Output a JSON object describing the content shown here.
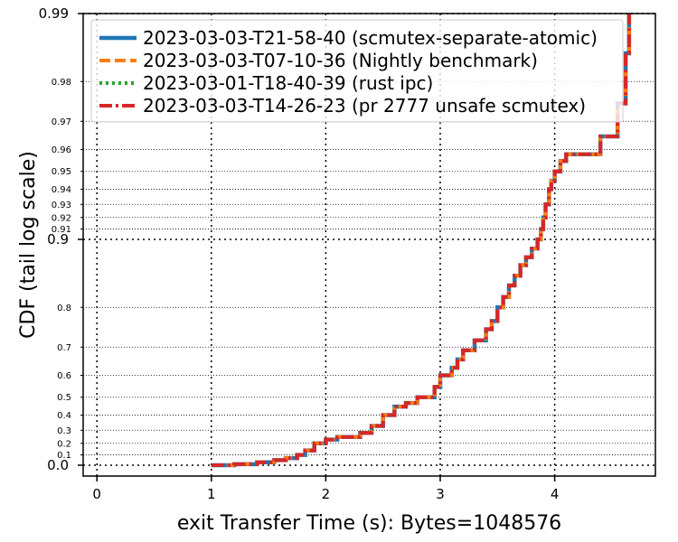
{
  "chart_data": {
    "type": "line",
    "xlabel": "exit Transfer Time (s): Bytes=1048576",
    "ylabel": "CDF (tail log scale)",
    "y_scale": "tail-log",
    "grid": true,
    "legend_placement": "top-left",
    "xlim": [
      -0.12,
      4.88
    ],
    "x_ticks": [
      {
        "value": 0,
        "label": "0"
      },
      {
        "value": 1,
        "label": "1"
      },
      {
        "value": 2,
        "label": "2"
      },
      {
        "value": 3,
        "label": "3"
      },
      {
        "value": 4,
        "label": "4"
      }
    ],
    "y_ticks_major": [
      {
        "value": 0.0,
        "label": "0.0"
      },
      {
        "value": 0.9,
        "label": "0.9"
      },
      {
        "value": 0.99,
        "label": "0.99"
      }
    ],
    "y_ticks_minor": [
      {
        "value": 0.1,
        "label": "0.1"
      },
      {
        "value": 0.2,
        "label": "0.2"
      },
      {
        "value": 0.3,
        "label": "0.3"
      },
      {
        "value": 0.4,
        "label": "0.4"
      },
      {
        "value": 0.5,
        "label": "0.5"
      },
      {
        "value": 0.6,
        "label": "0.6"
      },
      {
        "value": 0.7,
        "label": "0.7"
      },
      {
        "value": 0.8,
        "label": "0.8"
      },
      {
        "value": 0.91,
        "label": "0.91"
      },
      {
        "value": 0.92,
        "label": "0.92"
      },
      {
        "value": 0.93,
        "label": "0.93"
      },
      {
        "value": 0.94,
        "label": "0.94"
      },
      {
        "value": 0.95,
        "label": "0.95"
      },
      {
        "value": 0.96,
        "label": "0.96"
      },
      {
        "value": 0.97,
        "label": "0.97"
      },
      {
        "value": 0.98,
        "label": "0.98"
      }
    ],
    "series": [
      {
        "name": "2023-03-03-T21-58-40 (scmutex-separate-atomic)",
        "color": "#1f77b4",
        "style": "solid",
        "x": [
          1.0,
          1.2,
          1.4,
          1.55,
          1.65,
          1.75,
          1.82,
          1.9,
          2.0,
          2.1,
          2.3,
          2.4,
          2.5,
          2.6,
          2.7,
          2.8,
          2.95,
          3.0,
          3.1,
          3.15,
          3.2,
          3.3,
          3.4,
          3.45,
          3.5,
          3.55,
          3.6,
          3.65,
          3.7,
          3.75,
          3.8,
          3.85,
          3.88,
          3.9,
          3.92,
          3.95,
          3.97,
          4.0,
          4.05,
          4.1,
          4.35,
          4.4,
          4.55,
          4.62,
          4.65
        ],
        "y": [
          0.0,
          0.01,
          0.03,
          0.05,
          0.07,
          0.1,
          0.14,
          0.2,
          0.23,
          0.25,
          0.28,
          0.33,
          0.4,
          0.45,
          0.47,
          0.5,
          0.55,
          0.6,
          0.63,
          0.66,
          0.69,
          0.72,
          0.75,
          0.77,
          0.8,
          0.82,
          0.84,
          0.855,
          0.87,
          0.88,
          0.89,
          0.9,
          0.91,
          0.92,
          0.93,
          0.94,
          0.945,
          0.95,
          0.955,
          0.958,
          0.958,
          0.965,
          0.975,
          0.985,
          0.99
        ]
      },
      {
        "name": "2023-03-03-T07-10-36 (Nightly benchmark)",
        "color": "#ff7f0e",
        "style": "dashed",
        "x": [
          1.0,
          1.2,
          1.4,
          1.55,
          1.65,
          1.75,
          1.82,
          1.9,
          2.0,
          2.1,
          2.3,
          2.4,
          2.5,
          2.6,
          2.7,
          2.8,
          2.95,
          3.0,
          3.1,
          3.15,
          3.2,
          3.3,
          3.4,
          3.45,
          3.5,
          3.55,
          3.6,
          3.65,
          3.7,
          3.75,
          3.8,
          3.85,
          3.88,
          3.9,
          3.92,
          3.95,
          3.97,
          4.0,
          4.05,
          4.1,
          4.35,
          4.4,
          4.55,
          4.62,
          4.65
        ],
        "y": [
          0.0,
          0.01,
          0.03,
          0.05,
          0.07,
          0.1,
          0.14,
          0.2,
          0.23,
          0.25,
          0.28,
          0.33,
          0.4,
          0.45,
          0.47,
          0.5,
          0.55,
          0.6,
          0.63,
          0.66,
          0.69,
          0.72,
          0.75,
          0.77,
          0.8,
          0.82,
          0.84,
          0.855,
          0.87,
          0.88,
          0.89,
          0.9,
          0.91,
          0.92,
          0.93,
          0.94,
          0.945,
          0.95,
          0.955,
          0.958,
          0.958,
          0.965,
          0.975,
          0.985,
          0.99
        ]
      },
      {
        "name": "2023-03-01-T18-40-39 (rust ipc)",
        "color": "#2ca02c",
        "style": "dotted",
        "x": [],
        "y": []
      },
      {
        "name": "2023-03-03-T14-26-23 (pr 2777 unsafe scmutex)",
        "color": "#d62728",
        "style": "dashdot",
        "x": [
          1.0,
          1.2,
          1.4,
          1.55,
          1.65,
          1.75,
          1.82,
          1.9,
          2.0,
          2.1,
          2.3,
          2.4,
          2.5,
          2.6,
          2.7,
          2.8,
          2.95,
          3.0,
          3.1,
          3.15,
          3.2,
          3.3,
          3.4,
          3.45,
          3.5,
          3.55,
          3.6,
          3.65,
          3.7,
          3.75,
          3.8,
          3.85,
          3.88,
          3.9,
          3.92,
          3.95,
          3.97,
          4.0,
          4.05,
          4.1,
          4.35,
          4.4,
          4.55,
          4.62,
          4.65
        ],
        "y": [
          0.0,
          0.01,
          0.03,
          0.05,
          0.07,
          0.1,
          0.14,
          0.2,
          0.23,
          0.25,
          0.28,
          0.33,
          0.4,
          0.45,
          0.47,
          0.5,
          0.55,
          0.6,
          0.63,
          0.66,
          0.69,
          0.72,
          0.75,
          0.77,
          0.8,
          0.82,
          0.84,
          0.855,
          0.87,
          0.88,
          0.89,
          0.9,
          0.91,
          0.92,
          0.93,
          0.94,
          0.945,
          0.95,
          0.955,
          0.958,
          0.958,
          0.965,
          0.975,
          0.985,
          0.99
        ]
      }
    ]
  }
}
